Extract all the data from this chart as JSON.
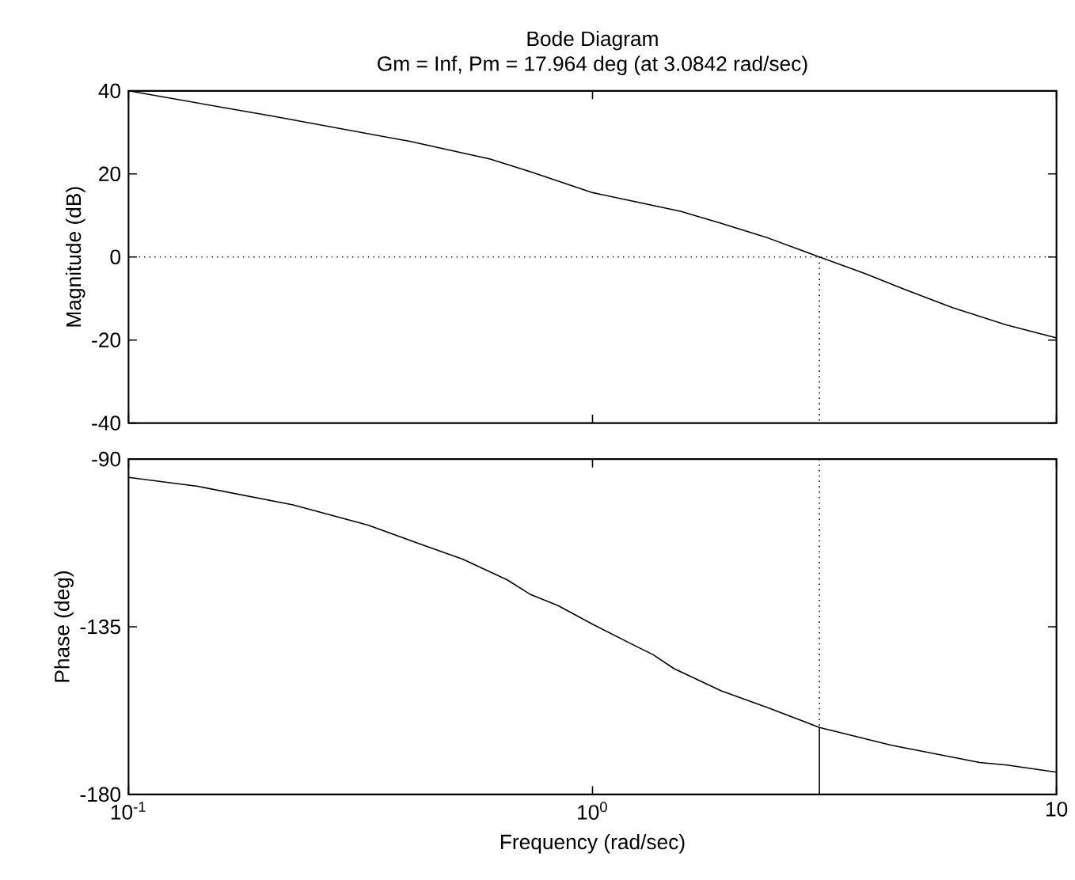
{
  "chart_data": [
    {
      "type": "line",
      "title": "Bode Diagram",
      "subtitle": "Gm = Inf,  Pm = 17.964 deg (at 3.0842 rad/sec)",
      "ylabel": "Magnitude (dB)",
      "log": "x",
      "tick_labels": "y",
      "xlim": [
        0.1,
        10
      ],
      "xticks": [
        {
          "value": 0.1,
          "label": null
        },
        {
          "value": 1,
          "label": null
        },
        {
          "value": 10,
          "label": null
        }
      ],
      "ylim": [
        -40,
        40
      ],
      "yticks": [
        -40,
        -20,
        0,
        20,
        40
      ],
      "ref_lines": [
        {
          "axis": "y",
          "value": 0,
          "color": "#000000",
          "line_style": "dotted"
        }
      ],
      "series": [
        {
          "color": "#000000",
          "line_style": "solid",
          "x": [
            0.1,
            0.2045,
            0.4016,
            0.6018,
            0.737,
            1.0,
            1.548,
            1.895,
            2.4,
            3.0842,
            3.85,
            4.71,
            5.97,
            7.82,
            10
          ],
          "values": [
            40,
            33.9,
            27.9,
            23.6,
            20.5,
            15.5,
            11.0,
            8.1,
            4.5,
            0,
            -3.9,
            -7.8,
            -12.2,
            -16.4,
            -19.5
          ]
        },
        {
          "color": "#000000",
          "line_style": "dotted",
          "x": [
            3.0842,
            3.0842
          ],
          "values": [
            0,
            -40
          ]
        }
      ]
    },
    {
      "type": "line",
      "xlabel": "Frequency (rad/sec)",
      "ylabel": "Phase (deg)",
      "log": "x",
      "xlim": [
        0.1,
        10
      ],
      "xticks": [
        {
          "value": 0.1,
          "label": "10$^{-1}$"
        },
        {
          "value": 1,
          "label": "10$^{0}$"
        },
        {
          "value": 10,
          "label": "10"
        }
      ],
      "ylim": [
        -180,
        -90
      ],
      "yticks": [
        -180,
        -135,
        -90
      ],
      "series": [
        {
          "color": "#000000",
          "line_style": "solid",
          "x": [
            0.1,
            0.141,
            0.2263,
            0.328,
            0.415,
            0.526,
            0.655,
            0.737,
            0.843,
            1.0,
            1.222,
            1.352,
            1.497,
            1.895,
            2.4,
            3.0842,
            4.41,
            6.83,
            7.82,
            10
          ],
          "values": [
            -94.9,
            -97.3,
            -102.3,
            -107.7,
            -112.3,
            -116.9,
            -122.4,
            -126.4,
            -129.3,
            -134.3,
            -139.8,
            -142.5,
            -146.2,
            -152.2,
            -156.8,
            -162,
            -166.8,
            -171.4,
            -172.1,
            -174.0
          ]
        },
        {
          "color": "#000000",
          "line_style": "dotted",
          "x": [
            3.0842,
            3.0842
          ],
          "values": [
            -90,
            -162
          ]
        },
        {
          "color": "#000000",
          "line_style": "solid",
          "x": [
            3.0842,
            3.0842
          ],
          "values": [
            -162,
            -180
          ]
        }
      ]
    }
  ]
}
